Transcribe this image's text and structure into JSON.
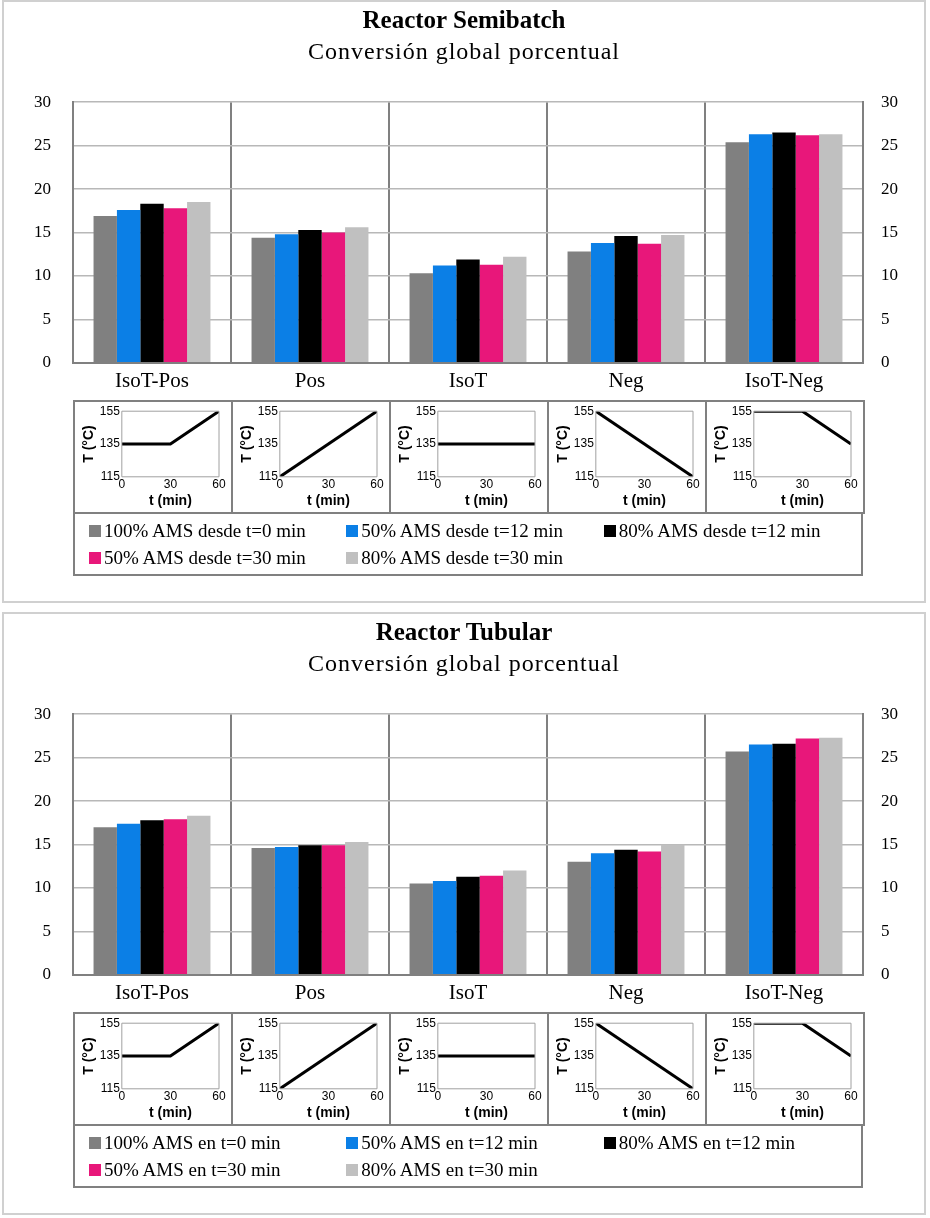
{
  "chart_data": [
    {
      "type": "bar",
      "title": "Reactor Semibatch",
      "subtitle": "Conversión global porcentual",
      "categories": [
        "IsoT-Pos",
        "Pos",
        "IsoT",
        "Neg",
        "IsoT-Neg"
      ],
      "ylim": [
        0,
        30
      ],
      "yticks": [
        0,
        5,
        10,
        15,
        20,
        25,
        30
      ],
      "y2lim": [
        0,
        30
      ],
      "y2ticks": [
        0,
        5,
        10,
        15,
        20,
        25,
        30
      ],
      "grid": true,
      "legend": "bottom",
      "series": [
        {
          "name": "100% AMS desde t=0 min",
          "color": "#808080",
          "values": [
            16.9,
            14.4,
            10.3,
            12.8,
            25.4
          ]
        },
        {
          "name": "50% AMS desde t=12 min",
          "color": "#0b7fe6",
          "values": [
            17.6,
            14.8,
            11.2,
            13.8,
            26.3
          ]
        },
        {
          "name": "80% AMS desde t=12 min",
          "color": "#000000",
          "values": [
            18.3,
            15.3,
            11.9,
            14.6,
            26.5
          ]
        },
        {
          "name": "50% AMS desde t=30 min",
          "color": "#e8177a",
          "values": [
            17.8,
            15.0,
            11.3,
            13.7,
            26.2
          ]
        },
        {
          "name": "80% AMS desde t=30 min",
          "color": "#c0c0c0",
          "values": [
            18.5,
            15.6,
            12.2,
            14.7,
            26.3
          ]
        }
      ]
    },
    {
      "type": "line",
      "x": [
        0,
        30,
        60
      ],
      "values": [
        135,
        135,
        155
      ],
      "color": "#000000",
      "xlim": [
        0,
        60
      ],
      "xticks": [
        0,
        30,
        60
      ],
      "ylim": [
        115,
        155
      ],
      "yticks": [
        115,
        135,
        155
      ],
      "xlabel": "t (min)",
      "ylabel": "T (°C)",
      "marker": "none"
    },
    {
      "type": "line",
      "x": [
        0,
        60
      ],
      "values": [
        115,
        155
      ],
      "color": "#000000",
      "xlim": [
        0,
        60
      ],
      "xticks": [
        0,
        30,
        60
      ],
      "ylim": [
        115,
        155
      ],
      "yticks": [
        115,
        135,
        155
      ],
      "xlabel": "t (min)",
      "ylabel": "T (°C)",
      "marker": "none"
    },
    {
      "type": "line",
      "x": [
        0,
        60
      ],
      "values": [
        135,
        135
      ],
      "color": "#000000",
      "xlim": [
        0,
        60
      ],
      "xticks": [
        0,
        30,
        60
      ],
      "ylim": [
        115,
        155
      ],
      "yticks": [
        115,
        135,
        155
      ],
      "xlabel": "t (min)",
      "ylabel": "T (°C)",
      "marker": "none"
    },
    {
      "type": "line",
      "x": [
        0,
        60
      ],
      "values": [
        155,
        115
      ],
      "color": "#000000",
      "xlim": [
        0,
        60
      ],
      "xticks": [
        0,
        30,
        60
      ],
      "ylim": [
        115,
        155
      ],
      "yticks": [
        115,
        135,
        155
      ],
      "xlabel": "t (min)",
      "ylabel": "T (°C)",
      "marker": "none"
    },
    {
      "type": "line",
      "x": [
        0,
        30,
        60
      ],
      "values": [
        155,
        155,
        135
      ],
      "color": "#000000",
      "xlim": [
        0,
        60
      ],
      "xticks": [
        0,
        30,
        60
      ],
      "ylim": [
        115,
        155
      ],
      "yticks": [
        115,
        135,
        155
      ],
      "xlabel": "t (min)",
      "ylabel": "T (°C)",
      "marker": "none"
    },
    {
      "type": "bar",
      "title": "Reactor Tubular",
      "subtitle": "Conversión global porcentual",
      "categories": [
        "IsoT-Pos",
        "Pos",
        "IsoT",
        "Neg",
        "IsoT-Neg"
      ],
      "ylim": [
        0,
        30
      ],
      "yticks": [
        0,
        5,
        10,
        15,
        20,
        25,
        30
      ],
      "y2lim": [
        0,
        30
      ],
      "y2ticks": [
        0,
        5,
        10,
        15,
        20,
        25,
        30
      ],
      "grid": true,
      "legend": "bottom",
      "series": [
        {
          "name": "100% AMS en t=0 min",
          "color": "#808080",
          "values": [
            17.0,
            14.6,
            10.5,
            13.0,
            25.7
          ]
        },
        {
          "name": "50% AMS en t=12 min",
          "color": "#0b7fe6",
          "values": [
            17.4,
            14.7,
            10.8,
            14.0,
            26.5
          ]
        },
        {
          "name": "80% AMS en t=12 min",
          "color": "#000000",
          "values": [
            17.8,
            14.9,
            11.3,
            14.4,
            26.6
          ]
        },
        {
          "name": "50% AMS en t=30 min",
          "color": "#e8177a",
          "values": [
            17.9,
            14.9,
            11.4,
            14.2,
            27.2
          ]
        },
        {
          "name": "80% AMS en t=30 min",
          "color": "#c0c0c0",
          "values": [
            18.3,
            15.3,
            12.0,
            15.0,
            27.3
          ]
        }
      ]
    },
    {
      "type": "line",
      "x": [
        0,
        30,
        60
      ],
      "values": [
        135,
        135,
        155
      ],
      "color": "#000000",
      "xlim": [
        0,
        60
      ],
      "xticks": [
        0,
        30,
        60
      ],
      "ylim": [
        115,
        155
      ],
      "yticks": [
        115,
        135,
        155
      ],
      "xlabel": "t (min)",
      "ylabel": "T (°C)",
      "marker": "none"
    },
    {
      "type": "line",
      "x": [
        0,
        60
      ],
      "values": [
        115,
        155
      ],
      "color": "#000000",
      "xlim": [
        0,
        60
      ],
      "xticks": [
        0,
        30,
        60
      ],
      "ylim": [
        115,
        155
      ],
      "yticks": [
        115,
        135,
        155
      ],
      "xlabel": "t (min)",
      "ylabel": "T (°C)",
      "marker": "none"
    },
    {
      "type": "line",
      "x": [
        0,
        60
      ],
      "values": [
        135,
        135
      ],
      "color": "#000000",
      "xlim": [
        0,
        60
      ],
      "xticks": [
        0,
        30,
        60
      ],
      "ylim": [
        115,
        155
      ],
      "yticks": [
        115,
        135,
        155
      ],
      "xlabel": "t (min)",
      "ylabel": "T (°C)",
      "marker": "none"
    },
    {
      "type": "line",
      "x": [
        0,
        60
      ],
      "values": [
        155,
        115
      ],
      "color": "#000000",
      "xlim": [
        0,
        60
      ],
      "xticks": [
        0,
        30,
        60
      ],
      "ylim": [
        115,
        155
      ],
      "yticks": [
        115,
        135,
        155
      ],
      "xlabel": "t (min)",
      "ylabel": "T (°C)",
      "marker": "none"
    },
    {
      "type": "line",
      "x": [
        0,
        30,
        60
      ],
      "values": [
        155,
        155,
        135
      ],
      "color": "#000000",
      "xlim": [
        0,
        60
      ],
      "xticks": [
        0,
        30,
        60
      ],
      "ylim": [
        115,
        155
      ],
      "yticks": [
        115,
        135,
        155
      ],
      "xlabel": "t (min)",
      "ylabel": "T (°C)",
      "marker": "none"
    }
  ]
}
